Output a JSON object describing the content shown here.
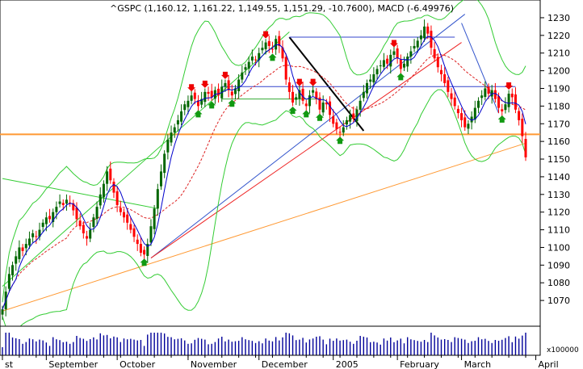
{
  "chart_data": {
    "type": "candlestick",
    "title": "^GSPC (1,160.12, 1,161.22, 1,149.55, 1,151.29, -10.7600), MACD (-6.49976)",
    "ylim": [
      1060,
      1235
    ],
    "y_ticks": [
      1070,
      1080,
      1090,
      1100,
      1110,
      1120,
      1130,
      1140,
      1150,
      1160,
      1170,
      1180,
      1190,
      1200,
      1210,
      1220,
      1230
    ],
    "x_months": [
      {
        "label": "st",
        "day": 0
      },
      {
        "label": "September",
        "day": 13
      },
      {
        "label": "October",
        "day": 34
      },
      {
        "label": "November",
        "day": 55
      },
      {
        "label": "December",
        "day": 76
      },
      {
        "label": "2005",
        "day": 98
      },
      {
        "label": "February",
        "day": 117
      },
      {
        "label": "March",
        "day": 136
      },
      {
        "label": "April",
        "day": 158
      }
    ],
    "volume_unit": "x100000",
    "horizontal_lines": [
      {
        "name": "support-resistance",
        "value": 1164,
        "color": "#ff9933"
      }
    ],
    "close_series": [
      1065,
      1075,
      1085,
      1090,
      1095,
      1100,
      1098,
      1102,
      1105,
      1108,
      1106,
      1110,
      1114,
      1117,
      1116,
      1120,
      1123,
      1126,
      1124,
      1127,
      1125,
      1121,
      1116,
      1112,
      1108,
      1105,
      1110,
      1117,
      1123,
      1130,
      1136,
      1143,
      1138,
      1131,
      1124,
      1120,
      1117,
      1114,
      1110,
      1106,
      1102,
      1097,
      1096,
      1102,
      1112,
      1122,
      1133,
      1143,
      1153,
      1161,
      1165,
      1168,
      1172,
      1177,
      1181,
      1183,
      1186,
      1184,
      1180,
      1184,
      1188,
      1187,
      1185,
      1189,
      1186,
      1191,
      1193,
      1189,
      1186,
      1190,
      1195,
      1199,
      1202,
      1205,
      1208,
      1206,
      1210,
      1213,
      1216,
      1214,
      1212,
      1218,
      1214,
      1207,
      1195,
      1188,
      1182,
      1185,
      1189,
      1183,
      1180,
      1186,
      1189,
      1184,
      1178,
      1182,
      1181,
      1175,
      1170,
      1167,
      1165,
      1168,
      1172,
      1175,
      1173,
      1178,
      1183,
      1188,
      1193,
      1195,
      1198,
      1201,
      1203,
      1206,
      1204,
      1209,
      1211,
      1207,
      1201,
      1204,
      1208,
      1211,
      1214,
      1217,
      1220,
      1225,
      1221,
      1213,
      1207,
      1202,
      1198,
      1193,
      1188,
      1184,
      1180,
      1176,
      1172,
      1168,
      1170,
      1174,
      1179,
      1183,
      1186,
      1190,
      1187,
      1189,
      1184,
      1179,
      1177,
      1181,
      1187,
      1185,
      1178,
      1172,
      1163,
      1151
    ]
  }
}
